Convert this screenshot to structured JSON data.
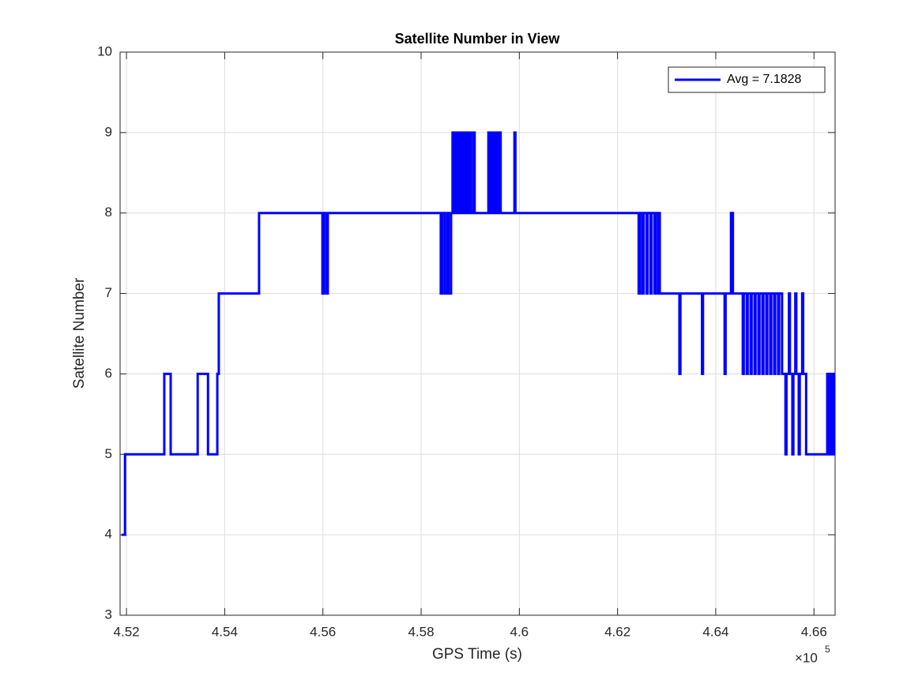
{
  "chart_data": {
    "type": "line",
    "title": "Satellite Number in View",
    "x_label": "GPS Time (s)",
    "y_label": "Satellite Number",
    "x_multiplier_base": "×10",
    "x_multiplier_exponent": "5",
    "x": [
      451900,
      451970,
      451970,
      452770,
      452770,
      452900,
      452900,
      453450,
      453450,
      453660,
      453660,
      453850,
      453850,
      453880,
      453880,
      454700,
      454700,
      455990,
      455990,
      456020,
      456020,
      456070,
      456070,
      456100,
      456100,
      458400,
      458400,
      458430,
      458430,
      458480,
      458480,
      458530,
      458530,
      458560,
      458560,
      458610,
      458610,
      458640,
      458640,
      458660,
      458660,
      458700,
      458700,
      458720,
      458720,
      458760,
      458760,
      458780,
      458780,
      458820,
      458820,
      458840,
      458840,
      458880,
      458880,
      458900,
      458900,
      458940,
      458940,
      458960,
      458960,
      459000,
      459000,
      459020,
      459020,
      459070,
      459070,
      459090,
      459090,
      459370,
      459370,
      459390,
      459390,
      459420,
      459420,
      459440,
      459440,
      459480,
      459480,
      459500,
      459500,
      459540,
      459540,
      459560,
      459560,
      459600,
      459600,
      459620,
      459620,
      459900,
      459900,
      459920,
      459920,
      462430,
      462430,
      462460,
      462460,
      462510,
      462510,
      462530,
      462530,
      462590,
      462590,
      462610,
      462610,
      462670,
      462670,
      462690,
      462690,
      462750,
      462750,
      462770,
      462770,
      462820,
      462820,
      462840,
      462840,
      462860,
      462860,
      463260,
      463260,
      463280,
      463280,
      463720,
      463720,
      463740,
      463740,
      464180,
      464180,
      464200,
      464200,
      464310,
      464310,
      464350,
      464350,
      464550,
      464550,
      464570,
      464570,
      464630,
      464630,
      464650,
      464650,
      464710,
      464710,
      464730,
      464730,
      464790,
      464790,
      464810,
      464810,
      464870,
      464870,
      464890,
      464890,
      464950,
      464950,
      464970,
      464970,
      465030,
      465030,
      465050,
      465050,
      465110,
      465110,
      465130,
      465130,
      465190,
      465190,
      465210,
      465210,
      465270,
      465270,
      465290,
      465290,
      465350,
      465350,
      465420,
      465420,
      465440,
      465440,
      465490,
      465490,
      465510,
      465510,
      465560,
      465560,
      465580,
      465580,
      465620,
      465620,
      465640,
      465640,
      465690,
      465690,
      465710,
      465710,
      465760,
      465760,
      465780,
      465780,
      465840,
      465840,
      466270,
      466270,
      466290,
      466290,
      466330,
      466330,
      466350,
      466350,
      466390,
      466390,
      466410,
      466410,
      466430
    ],
    "series": [
      {
        "name": "Avg = 7.1828",
        "color": "#0000ff",
        "values": [
          4,
          4,
          5,
          5,
          6,
          6,
          5,
          5,
          6,
          6,
          5,
          5,
          6,
          6,
          7,
          7,
          8,
          8,
          7,
          7,
          8,
          8,
          7,
          7,
          8,
          8,
          7,
          7,
          8,
          8,
          7,
          7,
          8,
          8,
          7,
          7,
          8,
          8,
          9,
          9,
          8,
          8,
          9,
          9,
          8,
          8,
          9,
          9,
          8,
          8,
          9,
          9,
          8,
          8,
          9,
          9,
          8,
          8,
          9,
          9,
          8,
          8,
          9,
          9,
          8,
          8,
          9,
          9,
          8,
          8,
          9,
          9,
          8,
          8,
          9,
          9,
          8,
          8,
          9,
          9,
          8,
          8,
          9,
          9,
          8,
          8,
          9,
          9,
          8,
          8,
          9,
          9,
          8,
          8,
          7,
          7,
          8,
          8,
          7,
          7,
          8,
          8,
          7,
          7,
          8,
          8,
          7,
          7,
          8,
          8,
          7,
          7,
          8,
          8,
          7,
          7,
          8,
          8,
          7,
          7,
          6,
          6,
          7,
          7,
          6,
          6,
          7,
          7,
          6,
          6,
          7,
          7,
          8,
          8,
          7,
          7,
          6,
          6,
          7,
          7,
          6,
          6,
          7,
          7,
          6,
          6,
          7,
          7,
          6,
          6,
          7,
          7,
          6,
          6,
          7,
          7,
          6,
          6,
          7,
          7,
          6,
          6,
          7,
          7,
          6,
          6,
          7,
          7,
          6,
          6,
          7,
          7,
          6,
          6,
          7,
          7,
          6,
          6,
          5,
          5,
          6,
          6,
          7,
          7,
          6,
          6,
          5,
          5,
          6,
          6,
          7,
          7,
          6,
          6,
          5,
          5,
          6,
          6,
          7,
          7,
          6,
          6,
          5,
          5,
          6,
          6,
          5,
          5,
          6,
          6,
          5,
          5,
          6,
          6,
          5,
          5
        ]
      }
    ],
    "xlim": [
      451870,
      466430
    ],
    "ylim": [
      3,
      10
    ],
    "xticks": [
      {
        "value": 452000,
        "label": "4.52"
      },
      {
        "value": 454000,
        "label": "4.54"
      },
      {
        "value": 456000,
        "label": "4.56"
      },
      {
        "value": 458000,
        "label": "4.58"
      },
      {
        "value": 460000,
        "label": "4.6"
      },
      {
        "value": 462000,
        "label": "4.62"
      },
      {
        "value": 464000,
        "label": "4.64"
      },
      {
        "value": 466000,
        "label": "4.66"
      }
    ],
    "yticks": [
      3,
      4,
      5,
      6,
      7,
      8,
      9,
      10
    ],
    "grid": true,
    "legend_position": "upper-right"
  }
}
